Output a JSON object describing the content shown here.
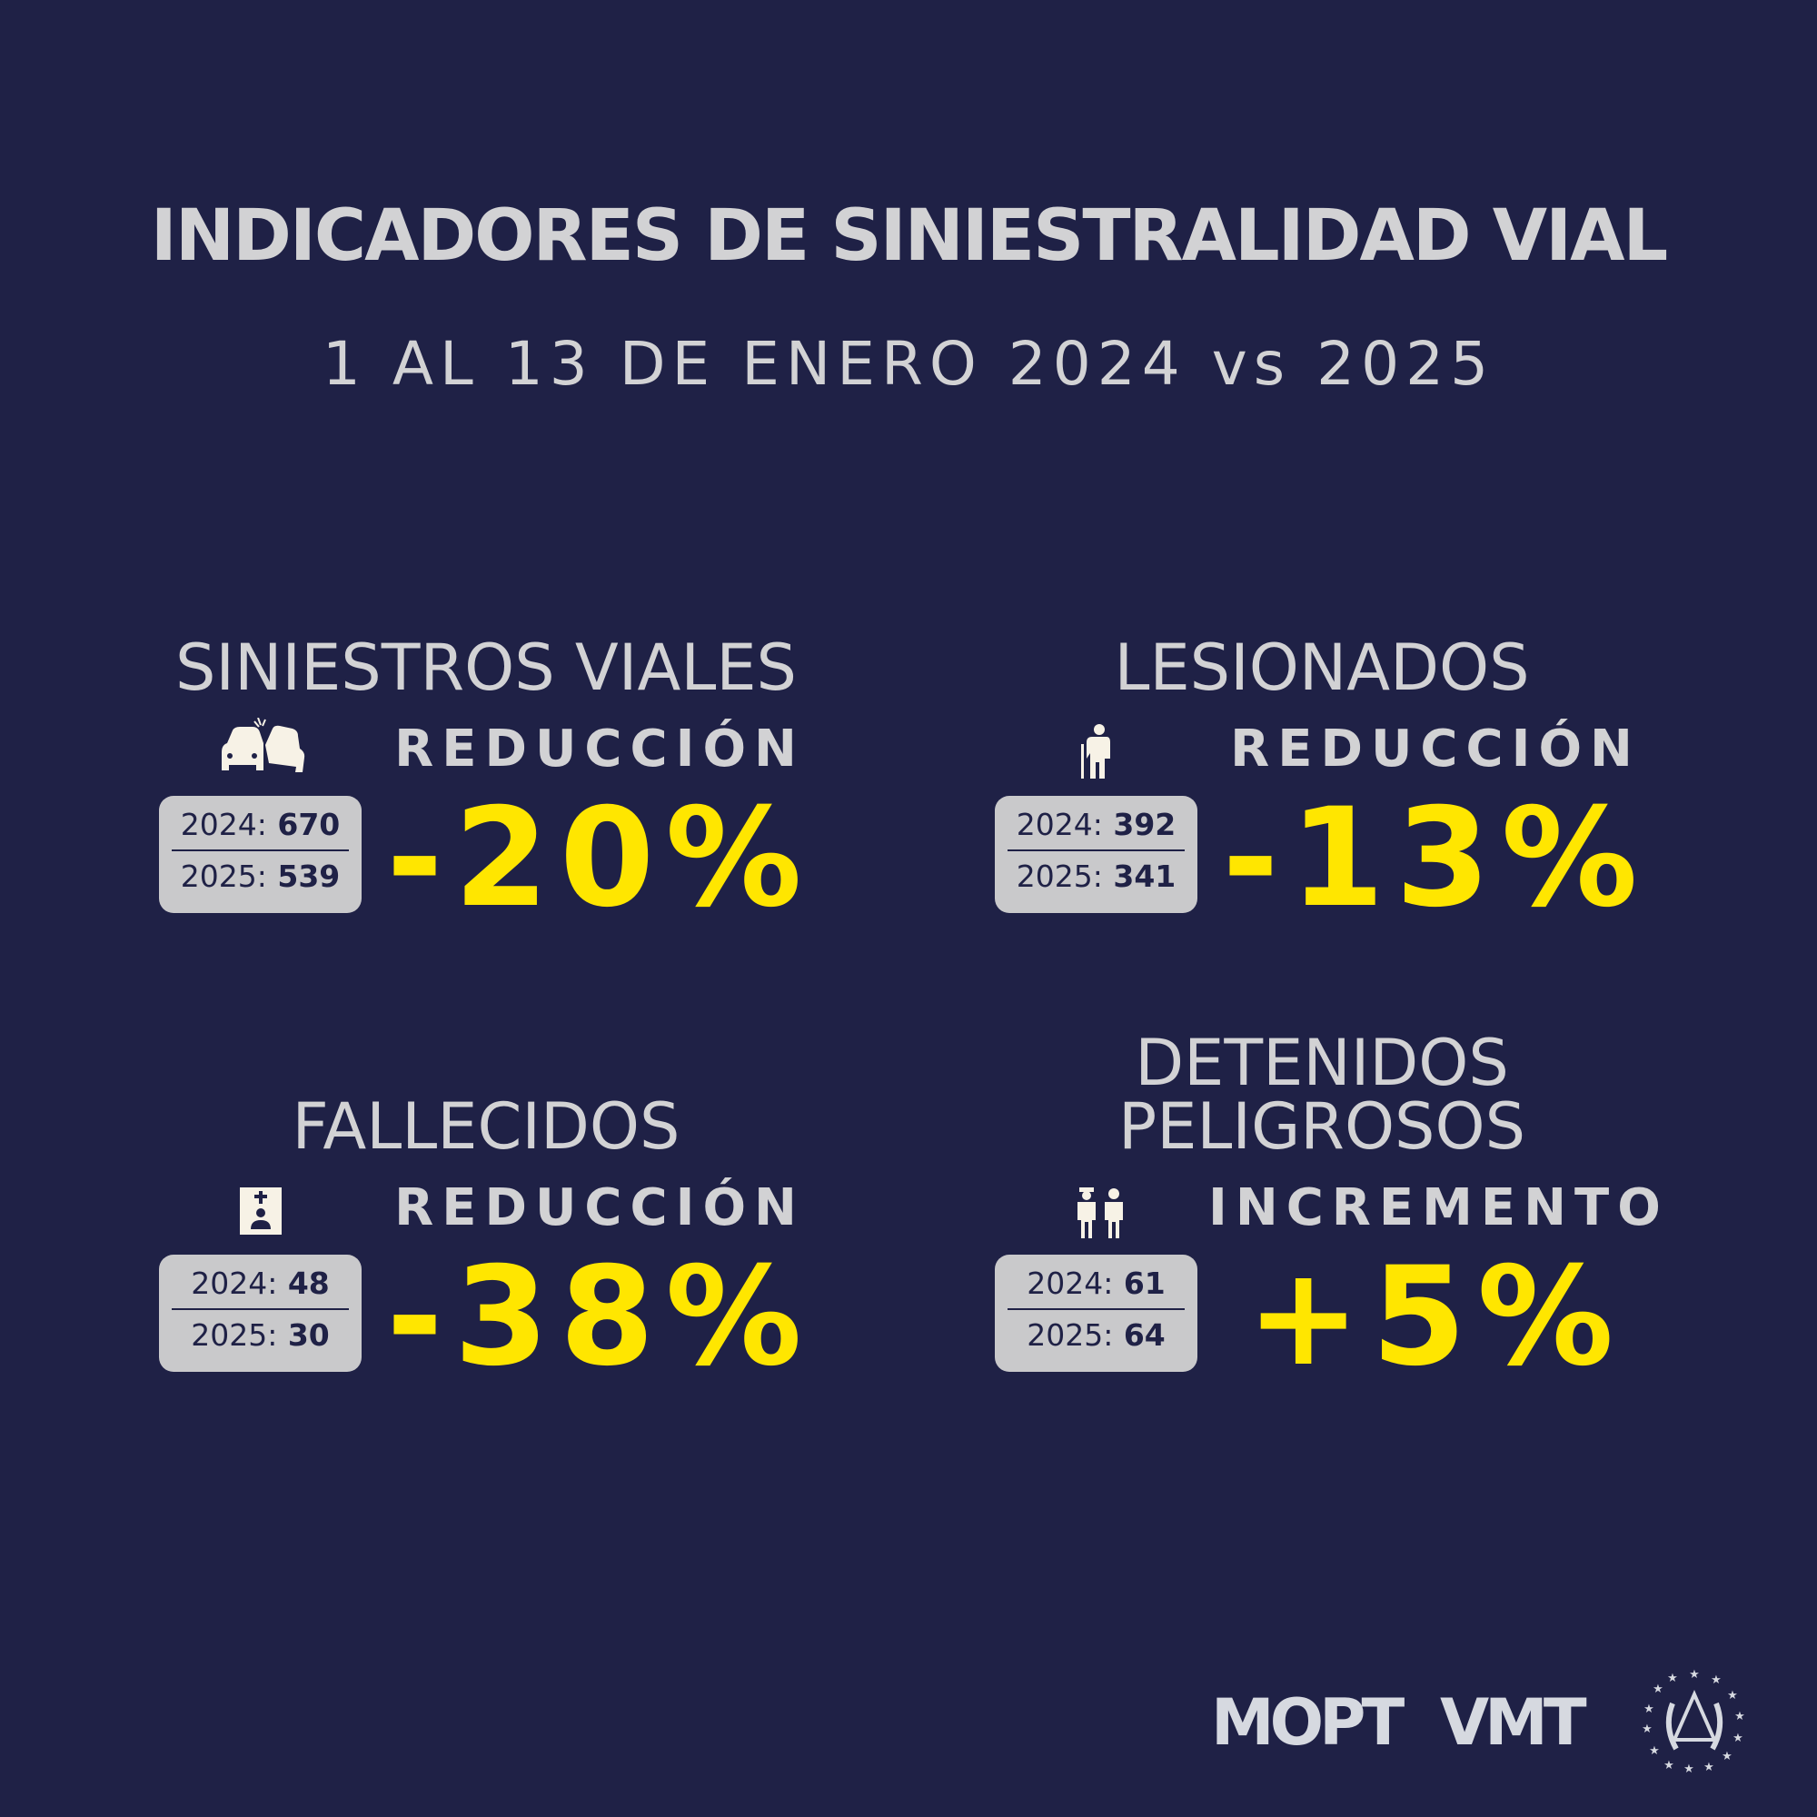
{
  "header": {
    "title": "INDICADORES DE SINIESTRALIDAD VIAL",
    "subtitle": "1 AL 13 DE ENERO 2024 vs 2025"
  },
  "indicators": [
    {
      "title": "SINIESTROS VIALES",
      "icon": "car-crash-icon",
      "trend": "REDUCCIÓN",
      "y2024_label": "2024:",
      "y2024": "670",
      "y2025_label": "2025:",
      "y2025": "539",
      "change": "-20%"
    },
    {
      "title": "LESIONADOS",
      "icon": "injured-person-icon",
      "trend": "REDUCCIÓN",
      "y2024_label": "2024:",
      "y2024": "392",
      "y2025_label": "2025:",
      "y2025": "341",
      "change": "-13%"
    },
    {
      "title": "FALLECIDOS",
      "icon": "memorial-icon",
      "trend": "REDUCCIÓN",
      "y2024_label": "2024:",
      "y2024": "48",
      "y2025_label": "2025:",
      "y2025": "30",
      "change": "-38%"
    },
    {
      "title_line1": "DETENIDOS",
      "title_line2": "PELIGROSOS",
      "icon": "police-detainee-icon",
      "trend": "INCREMENTO",
      "y2024_label": "2024:",
      "y2024": "61",
      "y2025_label": "2025:",
      "y2025": "64",
      "change": "+5%"
    }
  ],
  "footer": {
    "logos": [
      "MOPT",
      "VMT"
    ],
    "seal": "el-salvador-coat-of-arms"
  },
  "colors": {
    "background": "#1f2146",
    "text": "#d2d2d4",
    "accent": "#ffe600"
  }
}
